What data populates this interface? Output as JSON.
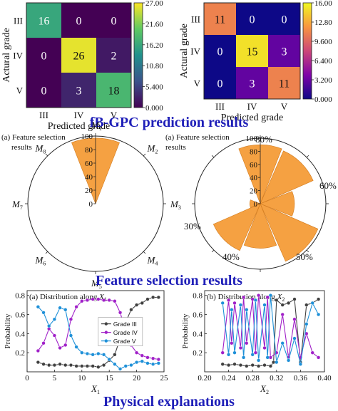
{
  "section_titles": {
    "gpc": "fB-GPC prediction results",
    "feature": "Feature selection results",
    "physical": "Physical explanations"
  },
  "chart_data": [
    {
      "type": "heatmap",
      "ylabel": "Actural grade",
      "xlabel": "Predicted grade",
      "categories": [
        "III",
        "IV",
        "V"
      ],
      "matrix": [
        [
          16,
          0,
          0
        ],
        [
          0,
          26,
          2
        ],
        [
          0,
          3,
          18
        ]
      ],
      "colorbar_ticks": [
        "27.00",
        "21.60",
        "16.20",
        "10.80",
        "5.400",
        "0.000"
      ],
      "range": [
        0,
        27
      ]
    },
    {
      "type": "heatmap",
      "ylabel": "Actural grade",
      "xlabel": "Predicted grade",
      "categories": [
        "III",
        "IV",
        "V"
      ],
      "matrix": [
        [
          11,
          0,
          0
        ],
        [
          0,
          15,
          3
        ],
        [
          0,
          3,
          11
        ]
      ],
      "colorbar_ticks": [
        "16.00",
        "12.80",
        "9.600",
        "6.400",
        "3.200",
        "0.000"
      ],
      "range": [
        0,
        16
      ]
    },
    {
      "type": "polar-bar",
      "title": "(a) Feature selection results",
      "labels": [
        "M1",
        "M2",
        "M3",
        "M4",
        "M5",
        "M6",
        "M7",
        "M8"
      ],
      "label_text": [
        {
          "main": "M",
          "sub": "1"
        },
        {
          "main": "M",
          "sub": "2"
        },
        {
          "main": "M",
          "sub": "3"
        },
        {
          "main": "M",
          "sub": "4"
        },
        {
          "main": "M",
          "sub": "5"
        },
        {
          "main": "M",
          "sub": "6"
        },
        {
          "main": "M",
          "sub": "7"
        },
        {
          "main": "M",
          "sub": "8"
        }
      ],
      "values": [
        97,
        0,
        0,
        0,
        0,
        0,
        0,
        0
      ],
      "r_ticks": [
        "100",
        "80",
        "60",
        "40",
        "20",
        "0"
      ],
      "rmax": 100
    },
    {
      "type": "polar-bar",
      "title": "(a) Feature selection results",
      "values": [
        90,
        88,
        52,
        96,
        68,
        78,
        16,
        0
      ],
      "label_text": [
        "80%",
        "60%",
        "50%",
        "40%",
        "30%"
      ],
      "r_ticks": [
        "100",
        "80",
        "60",
        "40",
        "20",
        "0"
      ],
      "rmax": 100
    },
    {
      "type": "line",
      "title": "(a) Distribution along X1",
      "title_main": "(a) Distribution along ",
      "title_var": {
        "main": "X",
        "sub": "1"
      },
      "xlabel": {
        "main": "X",
        "sub": "1"
      },
      "ylabel": "Probability",
      "xlim": [
        0,
        25
      ],
      "ylim": [
        0,
        0.85
      ],
      "x_ticks": [
        "0",
        "5",
        "10",
        "15",
        "20",
        "25"
      ],
      "y_ticks": [
        "0.8",
        "0.6",
        "0.4",
        "0.2"
      ],
      "legend": [
        "Grade III",
        "Grade IV",
        "Grade V"
      ],
      "series": [
        {
          "name": "Grade III",
          "color": "#404040",
          "x": [
            2,
            3,
            4,
            5,
            6,
            7,
            8,
            9,
            10,
            11,
            12,
            13,
            14,
            15,
            16,
            17,
            18,
            19,
            20,
            21,
            22,
            23,
            24
          ],
          "y": [
            0.1,
            0.08,
            0.07,
            0.07,
            0.08,
            0.07,
            0.07,
            0.06,
            0.06,
            0.06,
            0.06,
            0.05,
            0.07,
            0.12,
            0.18,
            0.35,
            0.52,
            0.65,
            0.7,
            0.72,
            0.76,
            0.78,
            0.78
          ]
        },
        {
          "name": "Grade IV",
          "color": "#a020c8",
          "x": [
            2,
            3,
            4,
            5,
            6,
            7,
            8,
            9,
            10,
            11,
            12,
            13,
            14,
            15,
            16,
            17,
            18,
            19,
            20,
            21,
            22,
            23,
            24
          ],
          "y": [
            0.22,
            0.3,
            0.45,
            0.38,
            0.25,
            0.28,
            0.55,
            0.68,
            0.74,
            0.75,
            0.76,
            0.76,
            0.75,
            0.75,
            0.74,
            0.62,
            0.42,
            0.28,
            0.2,
            0.17,
            0.15,
            0.14,
            0.13
          ]
        },
        {
          "name": "Grade V",
          "color": "#1e90d8",
          "x": [
            2,
            3,
            4,
            5,
            6,
            7,
            8,
            9,
            10,
            11,
            12,
            13,
            14,
            15,
            16,
            17,
            18,
            19,
            20,
            21,
            22,
            23,
            24
          ],
          "y": [
            0.68,
            0.62,
            0.48,
            0.55,
            0.67,
            0.65,
            0.38,
            0.26,
            0.2,
            0.19,
            0.18,
            0.19,
            0.18,
            0.13,
            0.08,
            0.03,
            0.06,
            0.07,
            0.1,
            0.11,
            0.09,
            0.08,
            0.09
          ]
        }
      ]
    },
    {
      "type": "line",
      "title": "(b) Distribution along X2",
      "title_main": "(b) Distribution along ",
      "title_var": {
        "main": "X",
        "sub": "2"
      },
      "xlabel": {
        "main": "X",
        "sub": "2"
      },
      "ylabel": "Probability",
      "xlim": [
        0.2,
        0.4
      ],
      "ylim": [
        0,
        0.85
      ],
      "x_ticks": [
        "0.20",
        "0.24",
        "0.28",
        "0.32",
        "0.36",
        "0.40"
      ],
      "y_ticks": [
        "0.8",
        "0.6",
        "0.4",
        "0.2"
      ],
      "series": [
        {
          "name": "Grade III",
          "color": "#404040",
          "x": [
            0.23,
            0.24,
            0.25,
            0.26,
            0.27,
            0.28,
            0.29,
            0.3,
            0.31,
            0.315,
            0.32,
            0.33,
            0.34,
            0.35,
            0.36,
            0.37,
            0.38,
            0.39
          ],
          "y": [
            0.08,
            0.07,
            0.08,
            0.07,
            0.06,
            0.07,
            0.06,
            0.07,
            0.06,
            0.1,
            0.75,
            0.7,
            0.72,
            0.76,
            0.1,
            0.7,
            0.72,
            0.76
          ]
        },
        {
          "name": "Grade IV",
          "color": "#a020c8",
          "x": [
            0.23,
            0.24,
            0.245,
            0.25,
            0.26,
            0.265,
            0.27,
            0.28,
            0.285,
            0.29,
            0.3,
            0.305,
            0.31,
            0.32,
            0.33,
            0.34,
            0.35,
            0.36,
            0.37,
            0.38,
            0.39
          ],
          "y": [
            0.2,
            0.75,
            0.3,
            0.72,
            0.25,
            0.78,
            0.3,
            0.76,
            0.2,
            0.8,
            0.25,
            0.78,
            0.15,
            0.2,
            0.6,
            0.15,
            0.55,
            0.15,
            0.4,
            0.2,
            0.15
          ]
        },
        {
          "name": "Grade V",
          "color": "#1e90d8",
          "x": [
            0.23,
            0.24,
            0.245,
            0.25,
            0.26,
            0.265,
            0.27,
            0.28,
            0.285,
            0.29,
            0.3,
            0.305,
            0.31,
            0.32,
            0.33,
            0.34,
            0.35,
            0.36,
            0.37,
            0.38,
            0.39
          ],
          "y": [
            0.72,
            0.18,
            0.65,
            0.2,
            0.7,
            0.15,
            0.65,
            0.18,
            0.75,
            0.12,
            0.7,
            0.15,
            0.8,
            0.1,
            0.3,
            0.12,
            0.35,
            0.08,
            0.5,
            0.72,
            0.6
          ]
        }
      ]
    }
  ]
}
